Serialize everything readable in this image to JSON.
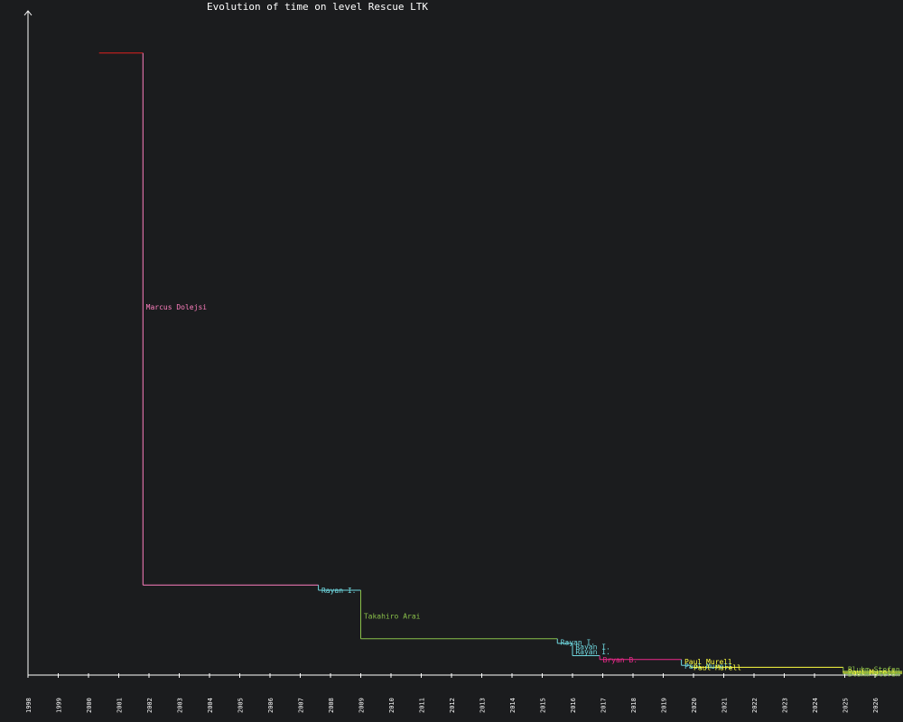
{
  "chart_data": {
    "type": "line",
    "title": "Evolution of time on level Rescue LTK",
    "xlabel": "",
    "ylabel": "",
    "x_ticks": [
      "1998",
      "1999",
      "2000",
      "2001",
      "2002",
      "2003",
      "2004",
      "2005",
      "2006",
      "2007",
      "2008",
      "2009",
      "2010",
      "2011",
      "2012",
      "2013",
      "2014",
      "2015",
      "2016",
      "2017",
      "2018",
      "2019",
      "2020",
      "2021",
      "2022",
      "2023",
      "2024",
      "2025",
      "2026"
    ],
    "xlim": [
      1998,
      2026.9
    ],
    "ylim": [
      0,
      100
    ],
    "grid": false,
    "legend": "none",
    "colors": {
      "background": "#1b1c1e",
      "axis": "#ffffff"
    },
    "segments": [
      {
        "player": "",
        "color": "#e0201e",
        "x_start": 2000.35,
        "x_end": 2001.8,
        "y": 96.0,
        "show_label": false
      },
      {
        "player": "Marcus Dolejsi",
        "color": "#ff7fbf",
        "x_start": 2001.8,
        "x_end": 2007.6,
        "y": 13.9,
        "show_label": true,
        "label_x": 2001.9,
        "label_y": 56.8
      },
      {
        "player": "Rayan I.",
        "color": "#6fd8e0",
        "x_start": 2007.6,
        "x_end": 2009.0,
        "y": 13.1,
        "show_label": true,
        "label_x": 2007.7,
        "label_y": 13.1
      },
      {
        "player": "Takahiro Arai",
        "color": "#8ac04a",
        "x_start": 2009.0,
        "x_end": 2015.5,
        "y": 5.6,
        "show_label": true,
        "label_x": 2009.1,
        "label_y": 9.1
      },
      {
        "player": "Rayan I.",
        "color": "#6fd8e0",
        "x_start": 2015.5,
        "x_end": 2016.0,
        "y": 4.9,
        "show_label": true,
        "label_x": 2015.6,
        "label_y": 5.1
      },
      {
        "player": "Rayan I.",
        "color": "#6fd8e0",
        "x_start": 2016.0,
        "x_end": 2016.5,
        "y": 3.0,
        "show_label": true,
        "label_x": 2016.1,
        "label_y": 4.4
      },
      {
        "player": "Rayan I.",
        "color": "#6fd8e0",
        "x_start": 2016.5,
        "x_end": 2016.9,
        "y": 3.0,
        "show_label": true,
        "label_x": 2016.1,
        "label_y": 3.6
      },
      {
        "player": "Bryan B.",
        "color": "#ee2a8c",
        "x_start": 2016.9,
        "x_end": 2019.6,
        "y": 2.4,
        "show_label": true,
        "label_x": 2017.0,
        "label_y": 2.4
      },
      {
        "player": "Paul Murell",
        "color": "#6fd8e0",
        "x_start": 2019.6,
        "x_end": 2019.9,
        "y": 1.5,
        "show_label": true,
        "label_x": 2019.7,
        "label_y": 1.4
      },
      {
        "player": "Paul Murell",
        "color": "#ffff40",
        "x_start": 2019.9,
        "x_end": 2024.95,
        "y": 1.2,
        "show_label": true,
        "label_x": 2019.7,
        "label_y": 2.1
      },
      {
        "player": "Paul Murell",
        "color": "#ffff40",
        "x_start": 2019.9,
        "x_end": 2019.9,
        "y": 1.2,
        "show_label": true,
        "label_x": 2020.0,
        "label_y": 1.2
      },
      {
        "player": "Bluhm Stefan",
        "color": "#8ac04a",
        "x_start": 2024.95,
        "x_end": 2026.9,
        "y": 0.6,
        "show_label": true,
        "label_x": 2025.1,
        "label_y": 0.9
      },
      {
        "player": "Paul Murell",
        "color": "#ffff40",
        "x_start": 2024.95,
        "x_end": 2026.9,
        "y": 0.4,
        "show_label": true,
        "label_x": 2025.1,
        "label_y": 0.5
      },
      {
        "player": "Bluhm Stefan",
        "color": "#8ac04a",
        "x_start": 2024.95,
        "x_end": 2026.9,
        "y": 0.2,
        "show_label": true,
        "label_x": 2025.1,
        "label_y": 0.2
      }
    ]
  }
}
